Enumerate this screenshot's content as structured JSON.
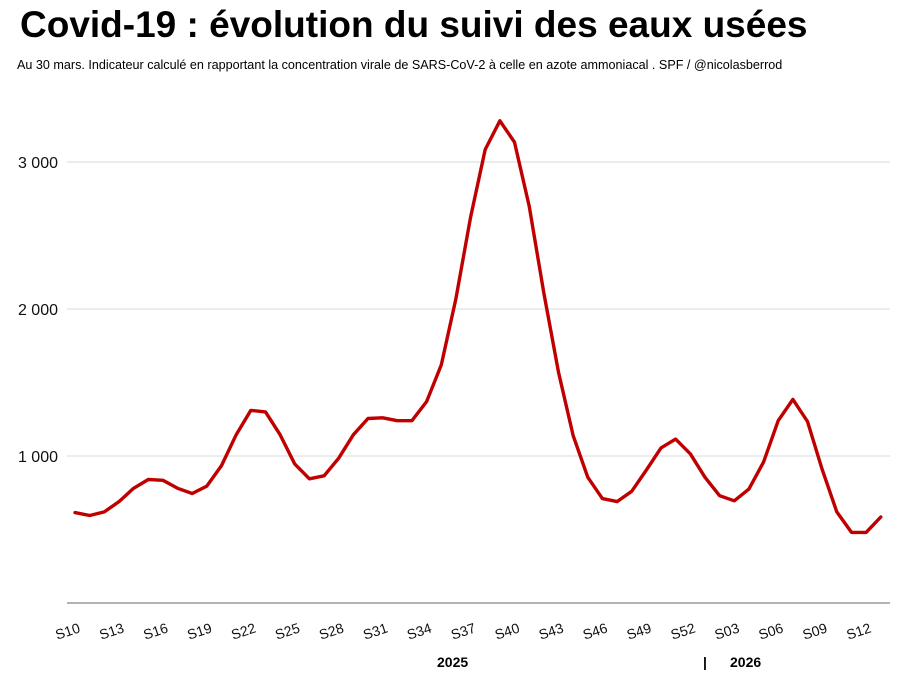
{
  "title": "Covid-19 : évolution du suivi des eaux usées",
  "subtitle": "Au 30 mars. Indicateur calculé en rapportant la concentration virale de SARS-CoV-2 à celle en azote ammoniacal . SPF / @nicolasberrod",
  "chart_data": {
    "type": "line",
    "title": "Covid-19 : évolution du suivi des eaux usées",
    "subtitle": "Au 30 mars. Indicateur calculé en rapportant la concentration virale de SARS-CoV-2 à celle en azote ammoniacal . SPF / @nicolasberrod",
    "xlabel": "",
    "ylabel": "",
    "ylim": [
      0,
      3400
    ],
    "grid": true,
    "legend": "none",
    "color": "#c00000",
    "y_ticks": [
      {
        "value": 1000,
        "label": "1 000"
      },
      {
        "value": 2000,
        "label": "2 000"
      },
      {
        "value": 3000,
        "label": "3 000"
      }
    ],
    "x_tick_labels": [
      {
        "index": 0,
        "label": "S10"
      },
      {
        "index": 3,
        "label": "S13"
      },
      {
        "index": 6,
        "label": "S16"
      },
      {
        "index": 9,
        "label": "S19"
      },
      {
        "index": 12,
        "label": "S22"
      },
      {
        "index": 15,
        "label": "S25"
      },
      {
        "index": 18,
        "label": "S28"
      },
      {
        "index": 21,
        "label": "S31"
      },
      {
        "index": 24,
        "label": "S34"
      },
      {
        "index": 27,
        "label": "S37"
      },
      {
        "index": 30,
        "label": "S40"
      },
      {
        "index": 33,
        "label": "S43"
      },
      {
        "index": 36,
        "label": "S46"
      },
      {
        "index": 39,
        "label": "S49"
      },
      {
        "index": 42,
        "label": "S52"
      },
      {
        "index": 45,
        "label": "S03"
      },
      {
        "index": 48,
        "label": "S06"
      },
      {
        "index": 51,
        "label": "S09"
      },
      {
        "index": 54,
        "label": "S12"
      }
    ],
    "year_labels": {
      "first": "2025",
      "separator": "|",
      "second": "2026"
    },
    "x": [
      "S10",
      "S11",
      "S12",
      "S13",
      "S14",
      "S15",
      "S16",
      "S17",
      "S18",
      "S19",
      "S20",
      "S21",
      "S22",
      "S23",
      "S24",
      "S25",
      "S26",
      "S27",
      "S28",
      "S29",
      "S30",
      "S31",
      "S32",
      "S33",
      "S34",
      "S35",
      "S36",
      "S37",
      "S38",
      "S39",
      "S40",
      "S41",
      "S42",
      "S43",
      "S44",
      "S45",
      "S46",
      "S47",
      "S48",
      "S49",
      "S50",
      "S51",
      "S52",
      "S01",
      "S02",
      "S03",
      "S04",
      "S05",
      "S06",
      "S07",
      "S08",
      "S09",
      "S10",
      "S11",
      "S12",
      "S13"
    ],
    "values": [
      615,
      595,
      620,
      690,
      780,
      840,
      835,
      780,
      745,
      795,
      935,
      1145,
      1310,
      1300,
      1145,
      945,
      845,
      865,
      985,
      1145,
      1255,
      1260,
      1240,
      1240,
      1370,
      1620,
      2070,
      2625,
      3085,
      3280,
      3135,
      2700,
      2110,
      1570,
      1140,
      855,
      710,
      690,
      760,
      905,
      1055,
      1115,
      1015,
      855,
      730,
      695,
      775,
      960,
      1240,
      1385,
      1235,
      910,
      620,
      480,
      480,
      585
    ]
  }
}
